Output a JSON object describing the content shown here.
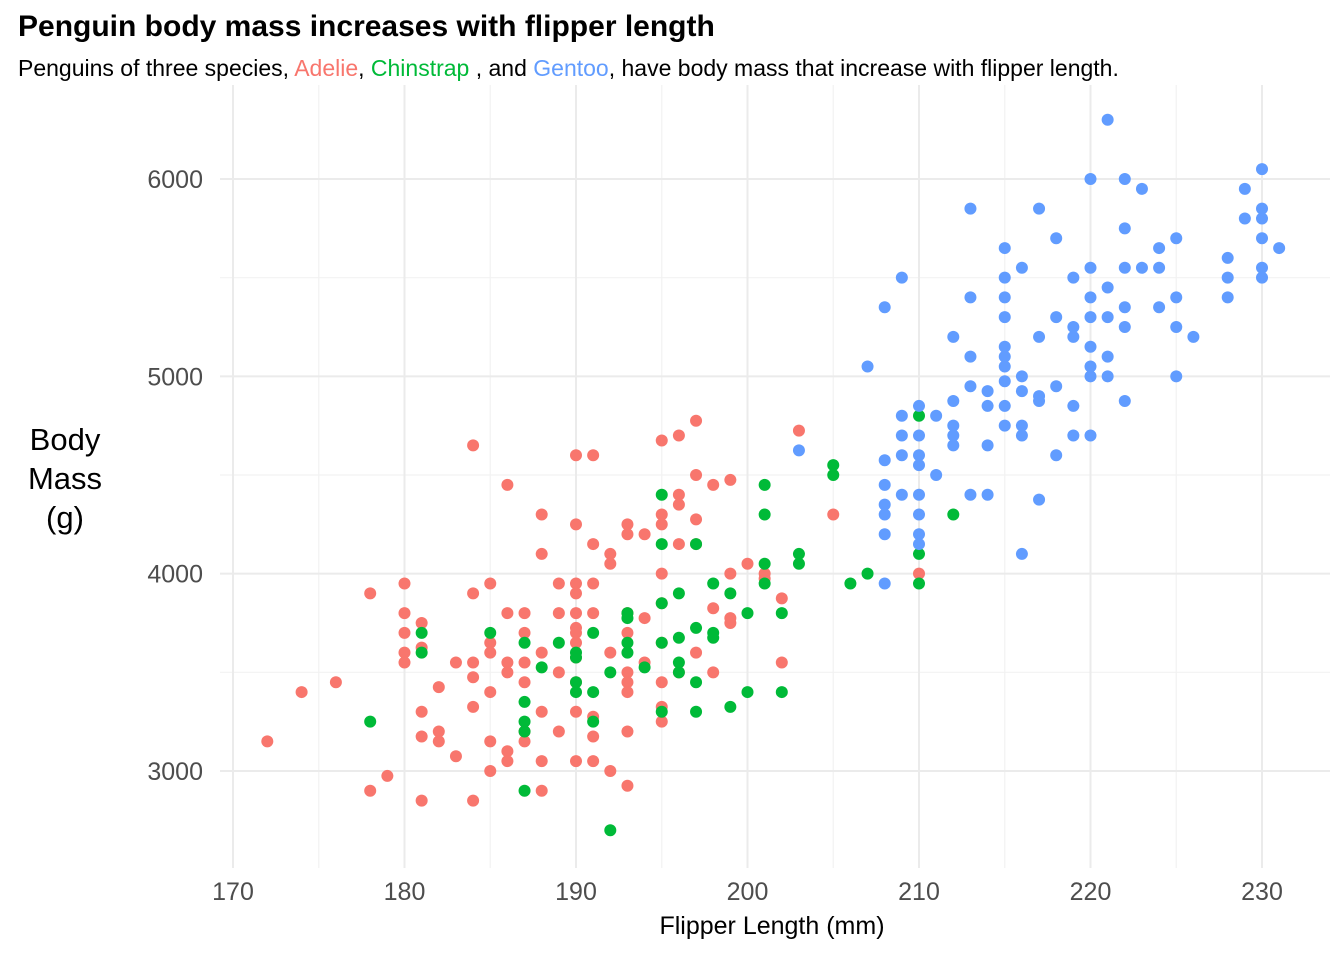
{
  "title": "Penguin body mass increases with flipper length",
  "subtitle": {
    "prefix": "Penguins of three species, ",
    "adelie": "Adelie",
    "sep1": ", ",
    "chinstrap": "Chinstrap",
    "sep2": " , and ",
    "gentoo": "Gentoo",
    "suffix": ", have body mass that increase with flipper length."
  },
  "colors": {
    "Adelie": "#F8766D",
    "Chinstrap": "#00BA38",
    "Gentoo": "#619CFF"
  },
  "chart_data": {
    "type": "scatter",
    "title": "Penguin body mass increases with flipper length",
    "xlabel": "Flipper Length (mm)",
    "ylabel": "Body Mass (g)",
    "xlim": [
      168,
      232
    ],
    "ylim": [
      2550,
      6400
    ],
    "xticks": [
      170,
      180,
      190,
      200,
      210,
      220,
      230
    ],
    "yticks": [
      3000,
      4000,
      5000,
      6000
    ],
    "grid": true,
    "legend": "none",
    "series": [
      {
        "name": "Adelie",
        "points": [
          [
            172,
            3150
          ],
          [
            174,
            3400
          ],
          [
            176,
            3450
          ],
          [
            178,
            3900
          ],
          [
            178,
            2900
          ],
          [
            179,
            2975
          ],
          [
            180,
            3950
          ],
          [
            180,
            3800
          ],
          [
            180,
            3700
          ],
          [
            180,
            3600
          ],
          [
            180,
            3550
          ],
          [
            181,
            3750
          ],
          [
            181,
            3625
          ],
          [
            181,
            3300
          ],
          [
            181,
            3175
          ],
          [
            181,
            2850
          ],
          [
            182,
            3425
          ],
          [
            182,
            3200
          ],
          [
            182,
            3150
          ],
          [
            183,
            3550
          ],
          [
            183,
            3075
          ],
          [
            184,
            4650
          ],
          [
            184,
            3900
          ],
          [
            184,
            3550
          ],
          [
            184,
            3475
          ],
          [
            184,
            3325
          ],
          [
            184,
            2850
          ],
          [
            185,
            3950
          ],
          [
            185,
            3650
          ],
          [
            185,
            3600
          ],
          [
            185,
            3400
          ],
          [
            185,
            3150
          ],
          [
            185,
            3000
          ],
          [
            186,
            4450
          ],
          [
            186,
            3800
          ],
          [
            186,
            3550
          ],
          [
            186,
            3500
          ],
          [
            186,
            3100
          ],
          [
            186,
            3050
          ],
          [
            187,
            3800
          ],
          [
            187,
            3700
          ],
          [
            187,
            3550
          ],
          [
            187,
            3450
          ],
          [
            187,
            3200
          ],
          [
            187,
            3150
          ],
          [
            188,
            4300
          ],
          [
            188,
            4100
          ],
          [
            188,
            3600
          ],
          [
            188,
            3300
          ],
          [
            188,
            3050
          ],
          [
            188,
            2900
          ],
          [
            189,
            3950
          ],
          [
            189,
            3800
          ],
          [
            189,
            3500
          ],
          [
            189,
            3200
          ],
          [
            190,
            4600
          ],
          [
            190,
            4250
          ],
          [
            190,
            3950
          ],
          [
            190,
            3900
          ],
          [
            190,
            3800
          ],
          [
            190,
            3725
          ],
          [
            190,
            3700
          ],
          [
            190,
            3650
          ],
          [
            190,
            3575
          ],
          [
            190,
            3450
          ],
          [
            190,
            3300
          ],
          [
            190,
            3050
          ],
          [
            191,
            4600
          ],
          [
            191,
            4150
          ],
          [
            191,
            3950
          ],
          [
            191,
            3800
          ],
          [
            191,
            3275
          ],
          [
            191,
            3175
          ],
          [
            191,
            3050
          ],
          [
            192,
            4100
          ],
          [
            192,
            4050
          ],
          [
            192,
            3600
          ],
          [
            192,
            3000
          ],
          [
            193,
            4250
          ],
          [
            193,
            4200
          ],
          [
            193,
            3800
          ],
          [
            193,
            3700
          ],
          [
            193,
            3500
          ],
          [
            193,
            3450
          ],
          [
            193,
            3400
          ],
          [
            193,
            3200
          ],
          [
            193,
            2925
          ],
          [
            194,
            4200
          ],
          [
            194,
            3775
          ],
          [
            194,
            3550
          ],
          [
            195,
            4675
          ],
          [
            195,
            4300
          ],
          [
            195,
            4250
          ],
          [
            195,
            4000
          ],
          [
            195,
            3850
          ],
          [
            195,
            3650
          ],
          [
            195,
            3450
          ],
          [
            195,
            3325
          ],
          [
            195,
            3250
          ],
          [
            196,
            4700
          ],
          [
            196,
            4400
          ],
          [
            196,
            4350
          ],
          [
            196,
            4150
          ],
          [
            196,
            3500
          ],
          [
            197,
            4775
          ],
          [
            197,
            4500
          ],
          [
            197,
            4275
          ],
          [
            197,
            4150
          ],
          [
            197,
            3600
          ],
          [
            198,
            4450
          ],
          [
            198,
            3825
          ],
          [
            198,
            3500
          ],
          [
            199,
            4475
          ],
          [
            199,
            4000
          ],
          [
            199,
            3775
          ],
          [
            199,
            3750
          ],
          [
            200,
            4050
          ],
          [
            201,
            4000
          ],
          [
            201,
            3975
          ],
          [
            202,
            3875
          ],
          [
            202,
            3550
          ],
          [
            203,
            4725
          ],
          [
            205,
            4300
          ],
          [
            210,
            4000
          ]
        ]
      },
      {
        "name": "Chinstrap",
        "points": [
          [
            178,
            3250
          ],
          [
            181,
            3700
          ],
          [
            181,
            3600
          ],
          [
            185,
            3700
          ],
          [
            187,
            3650
          ],
          [
            187,
            3350
          ],
          [
            187,
            3250
          ],
          [
            187,
            3200
          ],
          [
            187,
            2900
          ],
          [
            188,
            3525
          ],
          [
            189,
            3650
          ],
          [
            190,
            3600
          ],
          [
            190,
            3575
          ],
          [
            190,
            3450
          ],
          [
            190,
            3400
          ],
          [
            191,
            3700
          ],
          [
            191,
            3400
          ],
          [
            191,
            3250
          ],
          [
            192,
            3500
          ],
          [
            192,
            2700
          ],
          [
            193,
            3800
          ],
          [
            193,
            3775
          ],
          [
            193,
            3650
          ],
          [
            193,
            3600
          ],
          [
            194,
            3525
          ],
          [
            195,
            4400
          ],
          [
            195,
            4150
          ],
          [
            195,
            3850
          ],
          [
            195,
            3650
          ],
          [
            195,
            3300
          ],
          [
            196,
            3900
          ],
          [
            196,
            3675
          ],
          [
            196,
            3550
          ],
          [
            196,
            3500
          ],
          [
            197,
            4150
          ],
          [
            197,
            3725
          ],
          [
            197,
            3450
          ],
          [
            197,
            3300
          ],
          [
            198,
            3950
          ],
          [
            198,
            3700
          ],
          [
            198,
            3675
          ],
          [
            199,
            3900
          ],
          [
            199,
            3325
          ],
          [
            200,
            3800
          ],
          [
            200,
            3400
          ],
          [
            201,
            4450
          ],
          [
            201,
            4300
          ],
          [
            201,
            4050
          ],
          [
            201,
            3950
          ],
          [
            202,
            3800
          ],
          [
            202,
            3400
          ],
          [
            203,
            4100
          ],
          [
            203,
            4050
          ],
          [
            205,
            4550
          ],
          [
            205,
            4500
          ],
          [
            206,
            3950
          ],
          [
            207,
            4000
          ],
          [
            210,
            4800
          ],
          [
            210,
            4100
          ],
          [
            210,
            3950
          ],
          [
            212,
            4300
          ]
        ]
      },
      {
        "name": "Gentoo",
        "points": [
          [
            203,
            4625
          ],
          [
            207,
            5050
          ],
          [
            208,
            5350
          ],
          [
            208,
            4575
          ],
          [
            208,
            4450
          ],
          [
            208,
            4350
          ],
          [
            208,
            4300
          ],
          [
            208,
            4200
          ],
          [
            208,
            3950
          ],
          [
            209,
            5500
          ],
          [
            209,
            4800
          ],
          [
            209,
            4700
          ],
          [
            209,
            4600
          ],
          [
            209,
            4400
          ],
          [
            210,
            4850
          ],
          [
            210,
            4700
          ],
          [
            210,
            4600
          ],
          [
            210,
            4550
          ],
          [
            210,
            4400
          ],
          [
            210,
            4300
          ],
          [
            210,
            4200
          ],
          [
            210,
            4150
          ],
          [
            211,
            4800
          ],
          [
            211,
            4500
          ],
          [
            212,
            5200
          ],
          [
            212,
            4875
          ],
          [
            212,
            4750
          ],
          [
            212,
            4700
          ],
          [
            212,
            4650
          ],
          [
            213,
            5850
          ],
          [
            213,
            5400
          ],
          [
            213,
            5100
          ],
          [
            213,
            4950
          ],
          [
            213,
            4400
          ],
          [
            214,
            4925
          ],
          [
            214,
            4850
          ],
          [
            214,
            4650
          ],
          [
            214,
            4400
          ],
          [
            215,
            5650
          ],
          [
            215,
            5500
          ],
          [
            215,
            5400
          ],
          [
            215,
            5300
          ],
          [
            215,
            5150
          ],
          [
            215,
            5100
          ],
          [
            215,
            5050
          ],
          [
            215,
            4975
          ],
          [
            215,
            4850
          ],
          [
            215,
            4750
          ],
          [
            216,
            5550
          ],
          [
            216,
            5000
          ],
          [
            216,
            4925
          ],
          [
            216,
            4750
          ],
          [
            216,
            4700
          ],
          [
            216,
            4100
          ],
          [
            217,
            5850
          ],
          [
            217,
            5200
          ],
          [
            217,
            4900
          ],
          [
            217,
            4875
          ],
          [
            217,
            4375
          ],
          [
            218,
            5700
          ],
          [
            218,
            5300
          ],
          [
            218,
            4950
          ],
          [
            218,
            4600
          ],
          [
            219,
            5500
          ],
          [
            219,
            5250
          ],
          [
            219,
            5200
          ],
          [
            219,
            4850
          ],
          [
            219,
            4700
          ],
          [
            220,
            6000
          ],
          [
            220,
            5550
          ],
          [
            220,
            5400
          ],
          [
            220,
            5300
          ],
          [
            220,
            5150
          ],
          [
            220,
            5050
          ],
          [
            220,
            5000
          ],
          [
            220,
            4700
          ],
          [
            221,
            6300
          ],
          [
            221,
            5450
          ],
          [
            221,
            5300
          ],
          [
            221,
            5100
          ],
          [
            221,
            5000
          ],
          [
            222,
            6000
          ],
          [
            222,
            5750
          ],
          [
            222,
            5550
          ],
          [
            222,
            5350
          ],
          [
            222,
            5250
          ],
          [
            222,
            4875
          ],
          [
            223,
            5950
          ],
          [
            223,
            5550
          ],
          [
            224,
            5650
          ],
          [
            224,
            5550
          ],
          [
            224,
            5350
          ],
          [
            225,
            5700
          ],
          [
            225,
            5400
          ],
          [
            225,
            5250
          ],
          [
            225,
            5000
          ],
          [
            226,
            5200
          ],
          [
            228,
            5600
          ],
          [
            228,
            5500
          ],
          [
            228,
            5400
          ],
          [
            229,
            5950
          ],
          [
            229,
            5800
          ],
          [
            230,
            6050
          ],
          [
            230,
            5850
          ],
          [
            230,
            5800
          ],
          [
            230,
            5700
          ],
          [
            230,
            5550
          ],
          [
            230,
            5500
          ],
          [
            231,
            5650
          ]
        ]
      }
    ]
  }
}
